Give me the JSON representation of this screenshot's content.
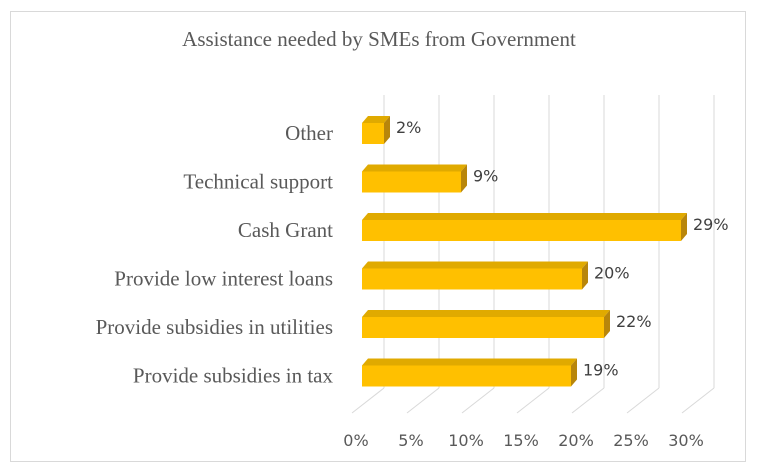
{
  "chart_data": {
    "type": "bar",
    "orientation": "horizontal",
    "style": "3d",
    "title": "Assistance needed by SMEs from Government",
    "categories": [
      "Other",
      "Technical support",
      "Cash Grant",
      "Provide low interest loans",
      "Provide subsidies in utilities",
      "Provide subsidies in tax"
    ],
    "values": [
      2,
      9,
      29,
      20,
      22,
      19
    ],
    "value_labels": [
      "2%",
      "9%",
      "29%",
      "20%",
      "22%",
      "19%"
    ],
    "xlim": [
      0,
      30
    ],
    "x_ticks": [
      "0%",
      "5%",
      "10%",
      "15%",
      "20%",
      "25%",
      "30%"
    ],
    "grid": true,
    "legend": "none",
    "colors": {
      "bar_front": "#ffc000",
      "bar_top": "#e0aa00",
      "bar_side": "#b8860b",
      "grid": "#d9d9d9"
    }
  }
}
